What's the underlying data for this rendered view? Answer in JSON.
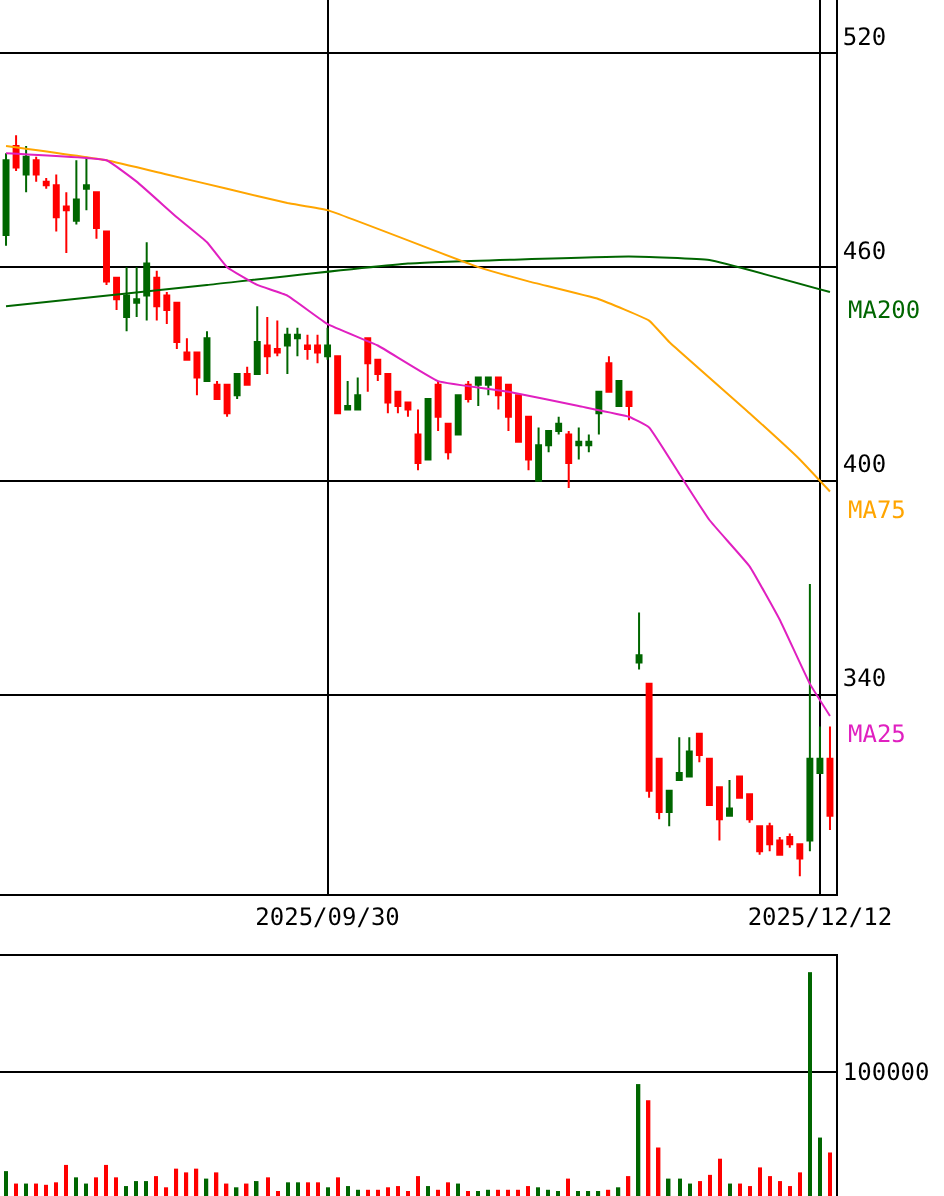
{
  "chart_data": [
    {
      "type": "candlestick",
      "categories": [
        null,
        null,
        null,
        null,
        null,
        null,
        null,
        null,
        null,
        null,
        null,
        null,
        null,
        null,
        null,
        null,
        null,
        null,
        null,
        null,
        null,
        null,
        null,
        null,
        null,
        null,
        null,
        null,
        null,
        null,
        null,
        null,
        "2025/09/30",
        null,
        null,
        null,
        null,
        null,
        null,
        null,
        null,
        null,
        null,
        null,
        null,
        null,
        null,
        null,
        null,
        null,
        null,
        null,
        null,
        null,
        null,
        null,
        null,
        null,
        null,
        null,
        null,
        null,
        null,
        null,
        null,
        null,
        null,
        null,
        null,
        null,
        null,
        null,
        null,
        null,
        null,
        null,
        null,
        null,
        null,
        null,
        null,
        "2025/12/12",
        null
      ],
      "ohlc": [
        [
          490,
          492,
          466,
          469
        ],
        [
          488,
          497,
          487,
          494
        ],
        [
          491,
          494,
          481,
          486
        ],
        [
          486,
          491,
          484,
          490
        ],
        [
          483,
          485,
          482,
          484
        ],
        [
          474,
          486,
          470,
          483
        ],
        [
          476,
          481,
          464,
          477
        ],
        [
          479,
          490,
          472,
          473
        ],
        [
          483,
          491,
          476,
          482
        ],
        [
          471,
          481,
          468,
          481
        ],
        [
          456,
          470,
          455,
          470
        ],
        [
          451,
          457,
          448,
          457
        ],
        [
          452,
          460,
          442,
          446
        ],
        [
          451,
          460,
          446,
          450
        ],
        [
          461,
          467,
          445,
          452
        ],
        [
          449,
          459,
          445,
          457
        ],
        [
          448,
          453,
          444,
          452
        ],
        [
          439,
          450,
          437,
          450
        ],
        [
          434,
          440,
          434,
          436
        ],
        [
          429,
          436,
          424,
          436
        ],
        [
          440,
          442,
          428,
          428
        ],
        [
          423,
          428,
          423,
          427
        ],
        [
          419,
          427,
          418,
          427
        ],
        [
          430,
          430,
          423,
          424
        ],
        [
          427,
          432,
          427,
          430
        ],
        [
          439,
          449,
          430,
          430
        ],
        [
          435,
          446,
          430,
          438
        ],
        [
          436,
          445,
          435,
          437
        ],
        [
          441,
          443,
          430,
          438
        ],
        [
          441,
          443,
          435,
          440
        ],
        [
          437,
          441,
          434,
          438
        ],
        [
          436,
          441,
          433,
          438
        ],
        [
          438,
          443,
          434,
          435
        ],
        [
          419,
          435,
          419,
          435
        ],
        [
          421,
          428,
          420,
          420
        ],
        [
          424,
          429,
          420,
          420
        ],
        [
          433,
          440,
          425,
          440
        ],
        [
          430,
          434,
          428,
          434
        ],
        [
          422,
          430,
          419,
          430
        ],
        [
          421,
          425,
          419,
          425
        ],
        [
          420,
          422,
          418,
          422
        ],
        [
          405,
          420,
          403,
          413
        ],
        [
          423,
          423,
          406,
          406
        ],
        [
          418,
          428,
          414,
          427
        ],
        [
          408,
          416,
          406,
          416
        ],
        [
          424,
          424,
          413,
          413
        ],
        [
          423,
          428,
          422,
          427
        ],
        [
          429,
          429,
          421,
          427
        ],
        [
          429,
          429,
          424,
          427
        ],
        [
          424,
          429,
          420,
          429
        ],
        [
          418,
          427,
          414,
          427
        ],
        [
          411,
          424,
          411,
          424
        ],
        [
          406,
          418,
          403,
          418
        ],
        [
          410,
          415,
          400,
          400
        ],
        [
          414,
          414,
          408,
          410
        ],
        [
          416,
          418,
          413,
          414
        ],
        [
          405,
          414,
          398,
          413
        ],
        [
          411,
          415,
          406,
          410
        ],
        [
          411,
          413,
          408,
          410
        ],
        [
          425,
          425,
          413,
          419
        ],
        [
          425,
          435,
          425,
          433
        ],
        [
          428,
          428,
          421,
          421
        ],
        [
          421,
          425,
          417,
          425
        ],
        [
          351,
          363,
          347,
          349
        ],
        [
          313,
          343,
          311,
          343
        ],
        [
          307,
          322,
          305,
          322
        ],
        [
          313,
          313,
          303,
          307
        ],
        [
          318,
          328,
          316,
          316
        ],
        [
          324,
          328,
          317,
          317
        ],
        [
          323,
          329,
          321,
          329
        ],
        [
          309,
          322,
          309,
          322
        ],
        [
          305,
          314,
          299,
          314
        ],
        [
          308,
          316,
          306,
          306
        ],
        [
          311,
          317,
          311,
          317
        ],
        [
          305,
          312,
          304,
          312
        ],
        [
          296,
          303,
          295,
          303
        ],
        [
          298,
          304,
          296,
          303
        ],
        [
          295,
          300,
          295,
          299
        ],
        [
          298,
          301,
          297,
          300
        ],
        [
          294,
          298,
          289,
          298
        ],
        [
          322,
          371,
          296,
          299
        ],
        [
          322,
          331,
          318,
          318
        ],
        [
          306,
          331,
          302,
          322
        ]
      ],
      "colors": [
        "#006600",
        "#ff0000",
        "#006600",
        "#ff0000",
        "#ff0000",
        "#ff0000",
        "#ff0000",
        "#006600",
        "#006600",
        "#ff0000",
        "#ff0000",
        "#ff0000",
        "#006600",
        "#006600",
        "#006600",
        "#ff0000",
        "#ff0000",
        "#ff0000",
        "#ff0000",
        "#ff0000",
        "#006600",
        "#ff0000",
        "#ff0000",
        "#006600",
        "#ff0000",
        "#006600",
        "#ff0000",
        "#ff0000",
        "#006600",
        "#006600",
        "#ff0000",
        "#ff0000",
        "#006600",
        "#ff0000",
        "#006600",
        "#006600",
        "#ff0000",
        "#ff0000",
        "#ff0000",
        "#ff0000",
        "#ff0000",
        "#ff0000",
        "#006600",
        "#ff0000",
        "#ff0000",
        "#006600",
        "#ff0000",
        "#006600",
        "#006600",
        "#ff0000",
        "#ff0000",
        "#ff0000",
        "#ff0000",
        "#006600",
        "#006600",
        "#006600",
        "#ff0000",
        "#006600",
        "#006600",
        "#006600",
        "#ff0000",
        "#006600",
        "#ff0000",
        "#006600",
        "#ff0000",
        "#ff0000",
        "#006600",
        "#006600",
        "#006600",
        "#ff0000",
        "#ff0000",
        "#ff0000",
        "#006600",
        "#ff0000",
        "#ff0000",
        "#ff0000",
        "#ff0000",
        "#ff0000",
        "#ff0000",
        "#ff0000",
        "#006600",
        "#006600",
        "#ff0000"
      ],
      "series": [
        {
          "type": "line",
          "name": "MA200",
          "color": "#006600",
          "values": [
            449,
            null,
            null,
            null,
            null,
            null,
            null,
            null,
            null,
            null,
            null,
            null,
            null,
            null,
            null,
            null,
            null,
            null,
            null,
            null,
            455,
            null,
            null,
            null,
            null,
            null,
            null,
            null,
            null,
            null,
            null,
            null,
            null,
            null,
            null,
            null,
            null,
            null,
            null,
            null,
            461,
            null,
            null,
            null,
            null,
            null,
            null,
            null,
            null,
            null,
            null,
            null,
            null,
            null,
            null,
            null,
            null,
            null,
            null,
            null,
            null,
            null,
            463,
            null,
            null,
            null,
            null,
            null,
            null,
            null,
            462,
            null,
            null,
            null,
            null,
            null,
            null,
            null,
            null,
            null,
            null,
            null,
            453
          ]
        },
        {
          "type": "line",
          "name": "MA75",
          "color": "#ffa500",
          "values": [
            494,
            null,
            null,
            null,
            null,
            null,
            null,
            null,
            null,
            null,
            490,
            null,
            null,
            null,
            null,
            null,
            486,
            null,
            null,
            null,
            null,
            null,
            482,
            null,
            null,
            null,
            null,
            null,
            478,
            null,
            null,
            null,
            476,
            null,
            null,
            null,
            null,
            null,
            null,
            null,
            null,
            null,
            null,
            null,
            null,
            null,
            null,
            460,
            null,
            null,
            null,
            null,
            456,
            null,
            null,
            null,
            null,
            null,
            null,
            451,
            null,
            null,
            null,
            null,
            445,
            null,
            439,
            null,
            null,
            null,
            null,
            null,
            null,
            null,
            419,
            null,
            null,
            null,
            null,
            406,
            null,
            null,
            397
          ]
        },
        {
          "type": "line",
          "name": "MA25",
          "color": "#e020c0",
          "values": [
            492,
            null,
            null,
            null,
            null,
            null,
            null,
            null,
            null,
            null,
            490,
            null,
            null,
            484,
            null,
            null,
            null,
            474,
            null,
            null,
            467,
            null,
            460,
            null,
            null,
            455,
            null,
            null,
            452,
            null,
            null,
            null,
            444,
            null,
            null,
            null,
            null,
            438,
            null,
            null,
            null,
            null,
            null,
            428,
            null,
            null,
            null,
            null,
            null,
            null,
            425,
            null,
            null,
            null,
            null,
            null,
            null,
            421,
            null,
            null,
            null,
            null,
            418,
            null,
            415,
            null,
            null,
            402,
            null,
            null,
            389,
            null,
            null,
            null,
            376,
            null,
            null,
            361,
            null,
            null,
            343,
            null,
            334
          ]
        }
      ],
      "ylim": [
        284,
        535
      ],
      "yticks": [
        340,
        400,
        460,
        520
      ],
      "grid": true,
      "legend": false
    },
    {
      "type": "bar",
      "categories": [
        null,
        null,
        null,
        null,
        null,
        null,
        null,
        null,
        null,
        null,
        null,
        null,
        null,
        null,
        null,
        null,
        null,
        null,
        null,
        null,
        null,
        null,
        null,
        null,
        null,
        null,
        null,
        null,
        null,
        null,
        null,
        null,
        "2025/09/30",
        null,
        null,
        null,
        null,
        null,
        null,
        null,
        null,
        null,
        null,
        null,
        null,
        null,
        null,
        null,
        null,
        null,
        null,
        null,
        null,
        null,
        null,
        null,
        null,
        null,
        null,
        null,
        null,
        null,
        null,
        null,
        null,
        null,
        null,
        null,
        null,
        null,
        null,
        null,
        null,
        null,
        null,
        null,
        null,
        null,
        null,
        null,
        null,
        "2025/12/12",
        null
      ],
      "values": [
        20000,
        10000,
        10000,
        10000,
        9000,
        11000,
        25000,
        15000,
        10000,
        15000,
        25000,
        15000,
        8000,
        12000,
        12000,
        16000,
        7000,
        22000,
        19000,
        22000,
        14000,
        19000,
        10000,
        7000,
        10000,
        12000,
        15000,
        4000,
        11000,
        11000,
        11000,
        11000,
        7000,
        15000,
        8000,
        5000,
        5000,
        5000,
        7000,
        8000,
        4000,
        16000,
        8000,
        5000,
        11000,
        10000,
        4000,
        4000,
        5000,
        5000,
        5000,
        5000,
        8000,
        7000,
        5000,
        4000,
        14000,
        4000,
        4000,
        4000,
        5000,
        7000,
        16000,
        90000,
        77000,
        39000,
        14000,
        14000,
        10000,
        12000,
        17000,
        30000,
        10000,
        10000,
        8000,
        23000,
        16000,
        12000,
        8000,
        19000,
        180000,
        47000,
        35000
      ],
      "colors": [
        "#006600",
        "#ff0000",
        "#006600",
        "#ff0000",
        "#ff0000",
        "#ff0000",
        "#ff0000",
        "#006600",
        "#006600",
        "#ff0000",
        "#ff0000",
        "#ff0000",
        "#006600",
        "#006600",
        "#006600",
        "#ff0000",
        "#ff0000",
        "#ff0000",
        "#ff0000",
        "#ff0000",
        "#006600",
        "#ff0000",
        "#ff0000",
        "#006600",
        "#ff0000",
        "#006600",
        "#ff0000",
        "#ff0000",
        "#006600",
        "#006600",
        "#ff0000",
        "#ff0000",
        "#006600",
        "#ff0000",
        "#006600",
        "#006600",
        "#ff0000",
        "#ff0000",
        "#ff0000",
        "#ff0000",
        "#ff0000",
        "#ff0000",
        "#006600",
        "#ff0000",
        "#ff0000",
        "#006600",
        "#ff0000",
        "#006600",
        "#006600",
        "#ff0000",
        "#ff0000",
        "#ff0000",
        "#ff0000",
        "#006600",
        "#006600",
        "#006600",
        "#ff0000",
        "#006600",
        "#006600",
        "#006600",
        "#ff0000",
        "#006600",
        "#ff0000",
        "#006600",
        "#ff0000",
        "#ff0000",
        "#006600",
        "#006600",
        "#006600",
        "#ff0000",
        "#ff0000",
        "#ff0000",
        "#006600",
        "#ff0000",
        "#ff0000",
        "#ff0000",
        "#ff0000",
        "#ff0000",
        "#ff0000",
        "#ff0000",
        "#006600",
        "#006600",
        "#ff0000"
      ],
      "ylim": [
        0,
        193000
      ],
      "yticks": [
        {
          "value": 0,
          "label": null
        },
        100000
      ],
      "grid": "y",
      "tick_labels": "y",
      "legend": false
    }
  ]
}
